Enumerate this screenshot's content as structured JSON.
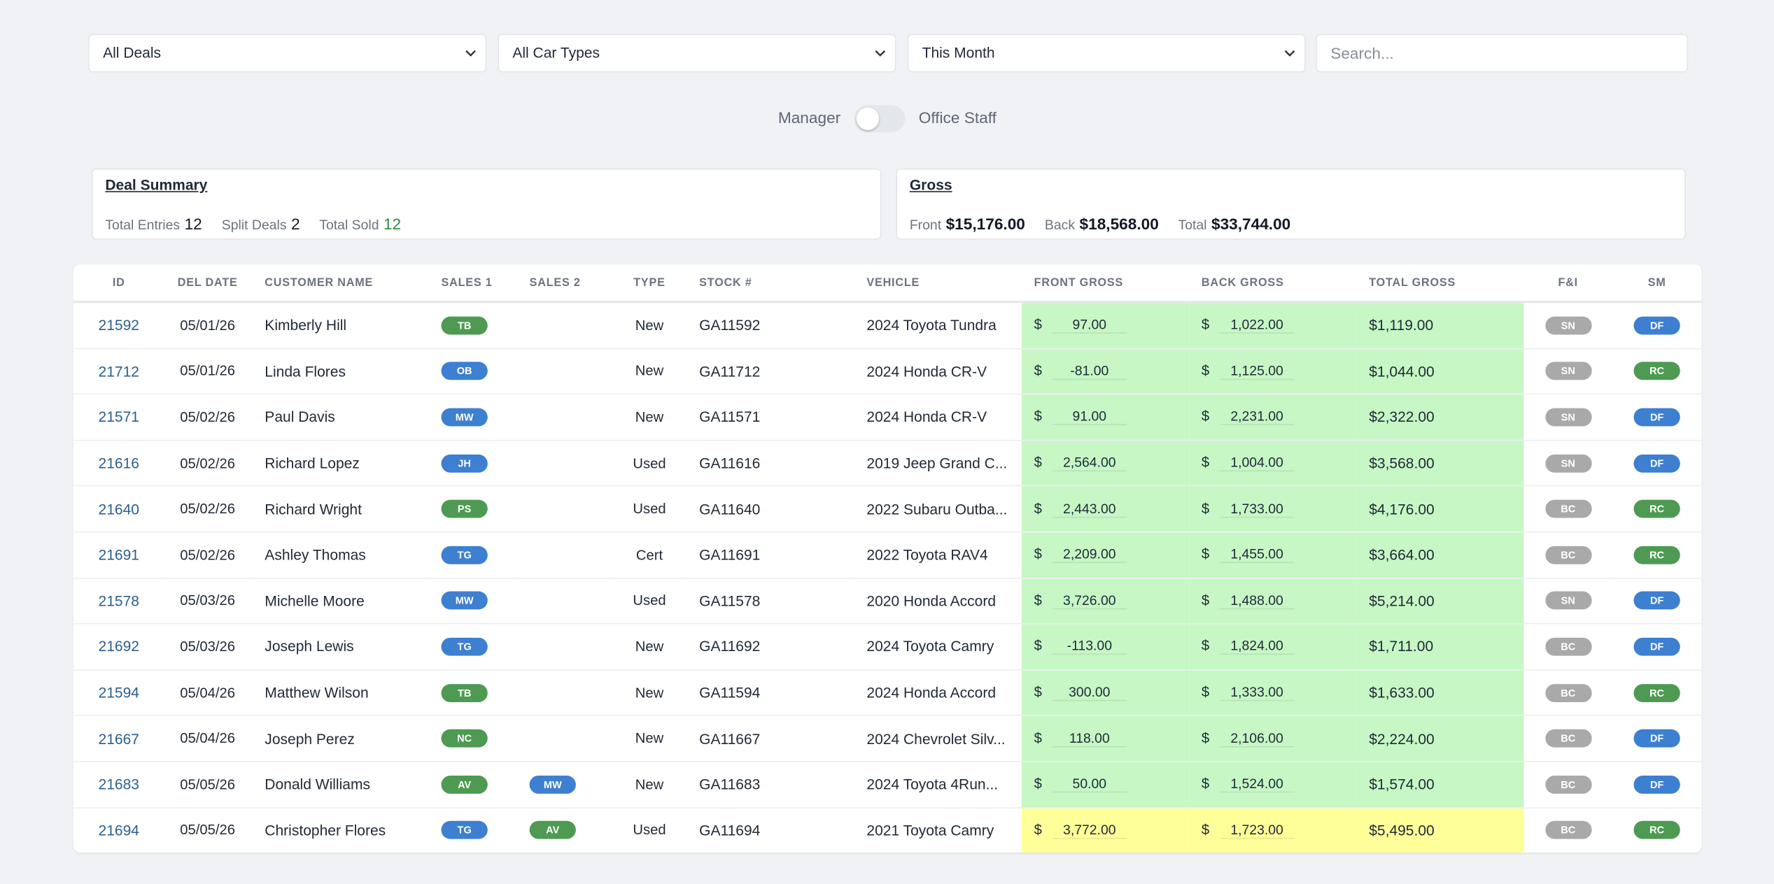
{
  "filters": {
    "deals": "All Deals",
    "car_types": "All Car Types",
    "period": "This Month",
    "search_placeholder": "Search..."
  },
  "toggle": {
    "left": "Manager",
    "right": "Office Staff"
  },
  "deal_summary": {
    "title": "Deal Summary",
    "total_entries_label": "Total Entries",
    "total_entries": 12,
    "split_deals_label": "Split Deals",
    "split_deals": 2,
    "total_sold_label": "Total Sold",
    "total_sold": 12
  },
  "gross": {
    "title": "Gross",
    "front_label": "Front",
    "front": "$15,176.00",
    "back_label": "Back",
    "back": "$18,568.00",
    "total_label": "Total",
    "total": "$33,744.00"
  },
  "table": {
    "currency": "$",
    "headers": [
      "ID",
      "DEL DATE",
      "CUSTOMER NAME",
      "SALES 1",
      "SALES 2",
      "TYPE",
      "STOCK #",
      "VEHICLE",
      "FRONT GROSS",
      "BACK GROSS",
      "TOTAL GROSS",
      "F&I",
      "SM"
    ],
    "rows": [
      {
        "id": "21592",
        "date": "05/01/26",
        "customer": "Kimberly Hill",
        "sales1": {
          "text": "TB",
          "color": "#4e9a52"
        },
        "sales2": null,
        "type": "New",
        "stock": "GA11592",
        "vehicle": "2024 Toyota Tundra",
        "front": "97.00",
        "back": "1,022.00",
        "total": "$1,119.00",
        "gross_color": "#c7f7c5",
        "fi": {
          "text": "SN",
          "color": "#a9a9a9"
        },
        "sm": {
          "text": "DF",
          "color": "#3d7fd0"
        }
      },
      {
        "id": "21712",
        "date": "05/01/26",
        "customer": "Linda Flores",
        "sales1": {
          "text": "OB",
          "color": "#3d7fd0"
        },
        "sales2": null,
        "type": "New",
        "stock": "GA11712",
        "vehicle": "2024 Honda CR-V",
        "front": "-81.00",
        "back": "1,125.00",
        "total": "$1,044.00",
        "gross_color": "#c7f7c5",
        "fi": {
          "text": "SN",
          "color": "#a9a9a9"
        },
        "sm": {
          "text": "RC",
          "color": "#4e9a52"
        }
      },
      {
        "id": "21571",
        "date": "05/02/26",
        "customer": "Paul Davis",
        "sales1": {
          "text": "MW",
          "color": "#3d7fd0"
        },
        "sales2": null,
        "type": "New",
        "stock": "GA11571",
        "vehicle": "2024 Honda CR-V",
        "front": "91.00",
        "back": "2,231.00",
        "total": "$2,322.00",
        "gross_color": "#c7f7c5",
        "fi": {
          "text": "SN",
          "color": "#a9a9a9"
        },
        "sm": {
          "text": "DF",
          "color": "#3d7fd0"
        }
      },
      {
        "id": "21616",
        "date": "05/02/26",
        "customer": "Richard Lopez",
        "sales1": {
          "text": "JH",
          "color": "#3d7fd0"
        },
        "sales2": null,
        "type": "Used",
        "stock": "GA11616",
        "vehicle": "2019 Jeep Grand C...",
        "front": "2,564.00",
        "back": "1,004.00",
        "total": "$3,568.00",
        "gross_color": "#c7f7c5",
        "fi": {
          "text": "SN",
          "color": "#a9a9a9"
        },
        "sm": {
          "text": "DF",
          "color": "#3d7fd0"
        }
      },
      {
        "id": "21640",
        "date": "05/02/26",
        "customer": "Richard Wright",
        "sales1": {
          "text": "PS",
          "color": "#4e9a52"
        },
        "sales2": null,
        "type": "Used",
        "stock": "GA11640",
        "vehicle": "2022 Subaru Outba...",
        "front": "2,443.00",
        "back": "1,733.00",
        "total": "$4,176.00",
        "gross_color": "#c7f7c5",
        "fi": {
          "text": "BC",
          "color": "#a9a9a9"
        },
        "sm": {
          "text": "RC",
          "color": "#4e9a52"
        }
      },
      {
        "id": "21691",
        "date": "05/02/26",
        "customer": "Ashley Thomas",
        "sales1": {
          "text": "TG",
          "color": "#3d7fd0"
        },
        "sales2": null,
        "type": "Cert",
        "stock": "GA11691",
        "vehicle": "2022 Toyota RAV4",
        "front": "2,209.00",
        "back": "1,455.00",
        "total": "$3,664.00",
        "gross_color": "#c7f7c5",
        "fi": {
          "text": "BC",
          "color": "#a9a9a9"
        },
        "sm": {
          "text": "RC",
          "color": "#4e9a52"
        }
      },
      {
        "id": "21578",
        "date": "05/03/26",
        "customer": "Michelle Moore",
        "sales1": {
          "text": "MW",
          "color": "#3d7fd0"
        },
        "sales2": null,
        "type": "Used",
        "stock": "GA11578",
        "vehicle": "2020 Honda Accord",
        "front": "3,726.00",
        "back": "1,488.00",
        "total": "$5,214.00",
        "gross_color": "#c7f7c5",
        "fi": {
          "text": "SN",
          "color": "#a9a9a9"
        },
        "sm": {
          "text": "DF",
          "color": "#3d7fd0"
        }
      },
      {
        "id": "21692",
        "date": "05/03/26",
        "customer": "Joseph Lewis",
        "sales1": {
          "text": "TG",
          "color": "#3d7fd0"
        },
        "sales2": null,
        "type": "New",
        "stock": "GA11692",
        "vehicle": "2024 Toyota Camry",
        "front": "-113.00",
        "back": "1,824.00",
        "total": "$1,711.00",
        "gross_color": "#c7f7c5",
        "fi": {
          "text": "BC",
          "color": "#a9a9a9"
        },
        "sm": {
          "text": "DF",
          "color": "#3d7fd0"
        }
      },
      {
        "id": "21594",
        "date": "05/04/26",
        "customer": "Matthew Wilson",
        "sales1": {
          "text": "TB",
          "color": "#4e9a52"
        },
        "sales2": null,
        "type": "New",
        "stock": "GA11594",
        "vehicle": "2024 Honda Accord",
        "front": "300.00",
        "back": "1,333.00",
        "total": "$1,633.00",
        "gross_color": "#c7f7c5",
        "fi": {
          "text": "BC",
          "color": "#a9a9a9"
        },
        "sm": {
          "text": "RC",
          "color": "#4e9a52"
        }
      },
      {
        "id": "21667",
        "date": "05/04/26",
        "customer": "Joseph Perez",
        "sales1": {
          "text": "NC",
          "color": "#4e9a52"
        },
        "sales2": null,
        "type": "New",
        "stock": "GA11667",
        "vehicle": "2024 Chevrolet Silv...",
        "front": "118.00",
        "back": "2,106.00",
        "total": "$2,224.00",
        "gross_color": "#c7f7c5",
        "fi": {
          "text": "BC",
          "color": "#a9a9a9"
        },
        "sm": {
          "text": "DF",
          "color": "#3d7fd0"
        }
      },
      {
        "id": "21683",
        "date": "05/05/26",
        "customer": "Donald Williams",
        "sales1": {
          "text": "AV",
          "color": "#4e9a52"
        },
        "sales2": {
          "text": "MW",
          "color": "#3d7fd0"
        },
        "type": "New",
        "stock": "GA11683",
        "vehicle": "2024 Toyota 4Run...",
        "front": "50.00",
        "back": "1,524.00",
        "total": "$1,574.00",
        "gross_color": "#c7f7c5",
        "fi": {
          "text": "BC",
          "color": "#a9a9a9"
        },
        "sm": {
          "text": "DF",
          "color": "#3d7fd0"
        }
      },
      {
        "id": "21694",
        "date": "05/05/26",
        "customer": "Christopher Flores",
        "sales1": {
          "text": "TG",
          "color": "#3d7fd0"
        },
        "sales2": {
          "text": "AV",
          "color": "#4e9a52"
        },
        "type": "Used",
        "stock": "GA11694",
        "vehicle": "2021 Toyota Camry",
        "front": "3,772.00",
        "back": "1,723.00",
        "total": "$5,495.00",
        "gross_color": "#ffff99",
        "fi": {
          "text": "BC",
          "color": "#a9a9a9"
        },
        "sm": {
          "text": "RC",
          "color": "#4e9a52"
        }
      }
    ]
  }
}
